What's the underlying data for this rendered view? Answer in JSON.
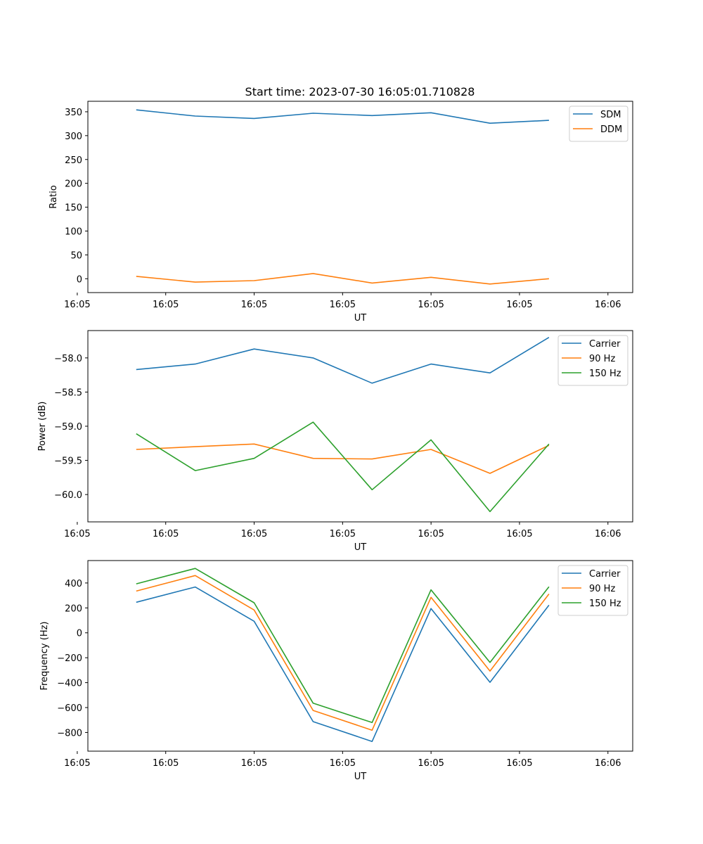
{
  "figure_title": "Start time: 2023-07-30 16:05:01.710828",
  "colors": {
    "blue": "#1f77b4",
    "orange": "#ff7f0e",
    "green": "#2ca02c"
  },
  "chart_data": [
    {
      "type": "line",
      "title": "Start time: 2023-07-30 16:05:01.710828",
      "xlabel": "UT",
      "ylabel": "Ratio",
      "x": [
        1,
        2,
        3,
        4,
        5,
        6,
        7,
        8
      ],
      "xlim": [
        0.18,
        9.42
      ],
      "ylim": [
        -29,
        372
      ],
      "x_ticks": [
        0,
        1.5,
        3,
        4.5,
        6,
        7.5,
        9
      ],
      "x_tick_labels": [
        "16:05",
        "16:05",
        "16:05",
        "16:05",
        "16:05",
        "16:05",
        "16:06"
      ],
      "y_ticks": [
        0,
        50,
        100,
        150,
        200,
        250,
        300,
        350
      ],
      "y_tick_labels": [
        "0",
        "50",
        "100",
        "150",
        "200",
        "250",
        "300",
        "350"
      ],
      "legend_position": "top-right",
      "series": [
        {
          "name": "SDM",
          "color_key": "blue",
          "values": [
            354,
            341,
            336,
            347,
            342,
            348,
            326,
            332
          ]
        },
        {
          "name": "DDM",
          "color_key": "orange",
          "values": [
            5,
            -7,
            -4,
            11,
            -9,
            3,
            -11,
            0
          ]
        }
      ]
    },
    {
      "type": "line",
      "xlabel": "UT",
      "ylabel": "Power (dB)",
      "x": [
        1,
        2,
        3,
        4,
        5,
        6,
        7,
        8
      ],
      "xlim": [
        0.18,
        9.42
      ],
      "ylim": [
        -60.4,
        -57.6
      ],
      "x_ticks": [
        0,
        1.5,
        3,
        4.5,
        6,
        7.5,
        9
      ],
      "x_tick_labels": [
        "16:05",
        "16:05",
        "16:05",
        "16:05",
        "16:05",
        "16:05",
        "16:06"
      ],
      "y_ticks": [
        -60.0,
        -59.5,
        -59.0,
        -58.5,
        -58.0
      ],
      "y_tick_labels": [
        "−60.0",
        "−59.5",
        "−59.0",
        "−58.5",
        "−58.0"
      ],
      "legend_position": "top-right",
      "series": [
        {
          "name": "Carrier",
          "color_key": "blue",
          "values": [
            -58.17,
            -58.09,
            -57.87,
            -58.0,
            -58.37,
            -58.09,
            -58.22,
            -57.7
          ]
        },
        {
          "name": "90 Hz",
          "color_key": "orange",
          "values": [
            -59.34,
            -59.3,
            -59.26,
            -59.47,
            -59.48,
            -59.34,
            -59.69,
            -59.28
          ]
        },
        {
          "name": "150 Hz",
          "color_key": "green",
          "values": [
            -59.11,
            -59.65,
            -59.47,
            -58.94,
            -59.93,
            -59.2,
            -60.25,
            -59.26
          ]
        }
      ]
    },
    {
      "type": "line",
      "xlabel": "UT",
      "ylabel": "Frequency (Hz)",
      "x": [
        1,
        2,
        3,
        4,
        5,
        6,
        7,
        8
      ],
      "xlim": [
        0.18,
        9.42
      ],
      "ylim": [
        -950,
        580
      ],
      "x_ticks": [
        0,
        1.5,
        3,
        4.5,
        6,
        7.5,
        9
      ],
      "x_tick_labels": [
        "16:05",
        "16:05",
        "16:05",
        "16:05",
        "16:05",
        "16:05",
        "16:06"
      ],
      "y_ticks": [
        -800,
        -600,
        -400,
        -200,
        0,
        200,
        400
      ],
      "y_tick_labels": [
        "−800",
        "−600",
        "−400",
        "−200",
        "0",
        "200",
        "400"
      ],
      "legend_position": "top-right",
      "series": [
        {
          "name": "Carrier",
          "color_key": "blue",
          "values": [
            245,
            368,
            93,
            -713,
            -872,
            195,
            -397,
            222
          ]
        },
        {
          "name": "90 Hz",
          "color_key": "orange",
          "values": [
            335,
            460,
            183,
            -623,
            -782,
            285,
            -307,
            312
          ]
        },
        {
          "name": "150 Hz",
          "color_key": "green",
          "values": [
            393,
            517,
            241,
            -565,
            -720,
            345,
            -238,
            370
          ]
        }
      ]
    }
  ]
}
